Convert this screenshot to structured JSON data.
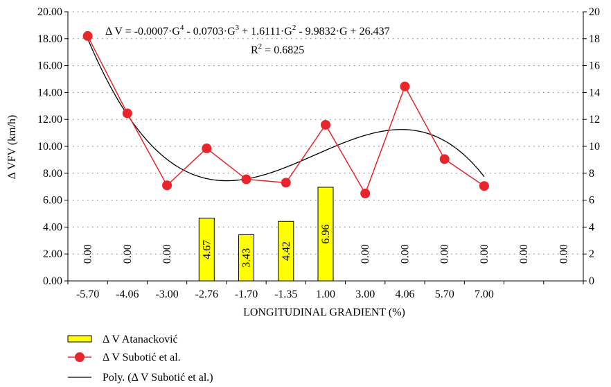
{
  "chart_data": {
    "type": "bar",
    "categories": [
      "-5.70",
      "-4.06",
      "-3.00",
      "-2.76",
      "-1.70",
      "-1.35",
      "1.00",
      "3.00",
      "4.06",
      "5.70",
      "7.00",
      "",
      ""
    ],
    "series": [
      {
        "name": "Δ V Atanacković",
        "kind": "bar",
        "values": [
          0,
          0,
          0,
          4.67,
          3.43,
          4.42,
          6.96,
          0,
          0,
          0,
          0,
          0,
          0
        ],
        "labels": [
          "0.00",
          "0.00",
          "0.00",
          "4.67",
          "3.43",
          "4.42",
          "6.96",
          "0.00",
          "0.00",
          "0.00",
          "0.00",
          "0.00",
          "0.00"
        ],
        "color": "#ffff00"
      },
      {
        "name": "Δ V Subotić et al.",
        "kind": "line-marker",
        "values": [
          18.2,
          12.45,
          7.1,
          9.85,
          7.55,
          7.3,
          11.6,
          6.5,
          14.45,
          9.05,
          7.05,
          null,
          null
        ],
        "color": "#e8262a"
      },
      {
        "name": "Poly. (Δ V Subotić et al.)",
        "kind": "trendline",
        "coefficients": [
          -0.0007,
          -0.0703,
          1.6111,
          -9.9832,
          26.437
        ],
        "color": "#000000"
      }
    ],
    "equation": {
      "prefix": "Δ V = -0.0007·G",
      "exp1": "4",
      "part2": " - 0.0703·G",
      "exp2": "3",
      "part3": " + 1.6111·G",
      "exp3": "2",
      "part4": " - 9.9832·G + 26.437",
      "r2_prefix": "R",
      "r2_exp": "2",
      "r2_value": " = 0.6825"
    },
    "xlabel": "LONGITUDINAL GRADIENT (%)",
    "ylabel": "Δ VFV (km/h)",
    "ylim": [
      0,
      20
    ],
    "y_ticks_left": [
      "0.00",
      "2.00",
      "4.00",
      "6.00",
      "8.00",
      "10.00",
      "12.00",
      "14.00",
      "16.00",
      "18.00",
      "20.00"
    ],
    "y_ticks_right": [
      "0",
      "2",
      "4",
      "6",
      "8",
      "10",
      "12",
      "14",
      "16",
      "18",
      "20"
    ],
    "grid": "horizontal dotted",
    "legend_position": "bottom-left"
  }
}
